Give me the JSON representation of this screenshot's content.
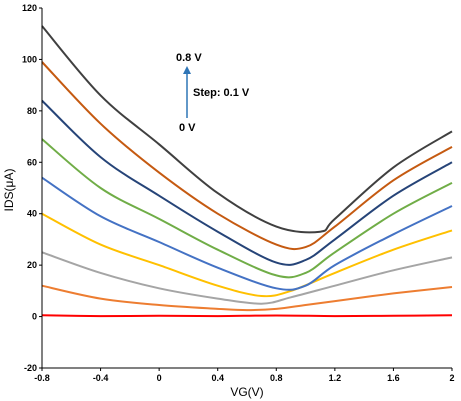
{
  "chart_data": {
    "type": "line",
    "xlabel": "VG(V)",
    "ylabel": "IDS(μA)",
    "xlim": [
      -0.8,
      2.0
    ],
    "ylim": [
      -20,
      120
    ],
    "grid": false,
    "legend": "none",
    "xticks": [
      "-0.8",
      "-0.4",
      "0",
      "0.4",
      "0.8",
      "1.2",
      "1.6",
      "2"
    ],
    "yticks": [
      "-20",
      "0",
      "20",
      "40",
      "60",
      "80",
      "100",
      "120"
    ],
    "annotations": {
      "top": "0.8 V",
      "middle": "Step: 0.1 V",
      "bottom": "0 V"
    },
    "series": [
      {
        "color": "#ff0000",
        "x": [
          -0.8,
          -0.4,
          0,
          0.4,
          0.8,
          1.2,
          1.6,
          2.0
        ],
        "y": [
          0.5,
          0.2,
          0.3,
          0.2,
          0.4,
          0.2,
          0.3,
          0.5
        ]
      },
      {
        "color": "#ed7d31",
        "x": [
          -0.8,
          -0.4,
          0,
          0.4,
          0.6,
          0.8,
          1.0,
          1.2,
          1.6,
          2.0
        ],
        "y": [
          12,
          7,
          4.5,
          3,
          2.5,
          3,
          4.5,
          6,
          9,
          11.5
        ]
      },
      {
        "color": "#a5a5a5",
        "x": [
          -0.8,
          -0.4,
          0,
          0.4,
          0.7,
          0.9,
          1.2,
          1.6,
          2.0
        ],
        "y": [
          25,
          17,
          11,
          7,
          5,
          7.5,
          12,
          18,
          23
        ]
      },
      {
        "color": "#ffc000",
        "x": [
          -0.8,
          -0.4,
          0,
          0.4,
          0.7,
          0.9,
          1.2,
          1.6,
          2.0
        ],
        "y": [
          40,
          28,
          20,
          12,
          8,
          10,
          17,
          26,
          33.5
        ]
      },
      {
        "color": "#4472c4",
        "x": [
          -0.8,
          -0.4,
          0,
          0.4,
          0.8,
          1.0,
          1.2,
          1.6,
          2.0
        ],
        "y": [
          54,
          39,
          29,
          19,
          11,
          12,
          20,
          32,
          43
        ]
      },
      {
        "color": "#70ad47",
        "x": [
          -0.8,
          -0.4,
          0,
          0.4,
          0.8,
          1.0,
          1.2,
          1.6,
          2.0
        ],
        "y": [
          69,
          50,
          38,
          26,
          16,
          17,
          25,
          40,
          52
        ]
      },
      {
        "color": "#264478",
        "x": [
          -0.8,
          -0.4,
          0,
          0.4,
          0.8,
          1.0,
          1.2,
          1.6,
          2.0
        ],
        "y": [
          84,
          62,
          47,
          33,
          21,
          22,
          30,
          47,
          60
        ]
      },
      {
        "color": "#c55a11",
        "x": [
          -0.8,
          -0.4,
          0,
          0.4,
          0.8,
          1.0,
          1.2,
          1.6,
          2.0
        ],
        "y": [
          99,
          75,
          56,
          40,
          28,
          27,
          35,
          53,
          66
        ]
      },
      {
        "color": "#404040",
        "x": [
          -0.8,
          -0.4,
          0,
          0.4,
          0.8,
          1.1,
          1.2,
          1.6,
          2.0
        ],
        "y": [
          113,
          86,
          67,
          48,
          35,
          33,
          38,
          58,
          72
        ]
      }
    ]
  }
}
